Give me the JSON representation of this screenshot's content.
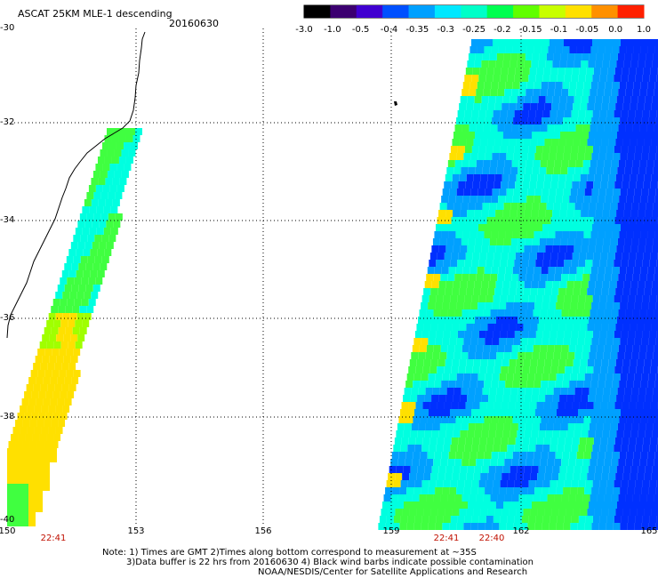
{
  "header": {
    "title": "ASCAT 25KM MLE-1 descending",
    "date": "20160630"
  },
  "colorbar": {
    "ticks": [
      "-3.0",
      "-1.0",
      "-0.5",
      "-0.4",
      "-0.35",
      "-0.3",
      "-0.25",
      "-0.2",
      "-0.15",
      "-0.1",
      "-0.05",
      "0.0",
      "1.0"
    ],
    "colors": [
      "#000000",
      "#3c0070",
      "#4000d0",
      "#0050ff",
      "#00a0ff",
      "#00e8ff",
      "#00ffc8",
      "#00ff50",
      "#60ff00",
      "#c8ff00",
      "#ffe000",
      "#ff9000",
      "#ff2000"
    ]
  },
  "axes": {
    "lat_labels": [
      "-30",
      "-32",
      "-34",
      "-36",
      "-38",
      "-40"
    ],
    "lon_labels": [
      "150",
      "153",
      "156",
      "159",
      "162",
      "165"
    ]
  },
  "pass_times": [
    "22:41",
    "22:41",
    "22:40"
  ],
  "notes": [
    "Note: 1) Times are GMT 2)Times along bottom correspond to measurement at ~35S",
    "3)Data buffer is 22 hrs from 20160630 4) Black wind barbs indicate possible contamination",
    "NOAA/NESDIS/Center for Satellite Applications and Research"
  ]
}
